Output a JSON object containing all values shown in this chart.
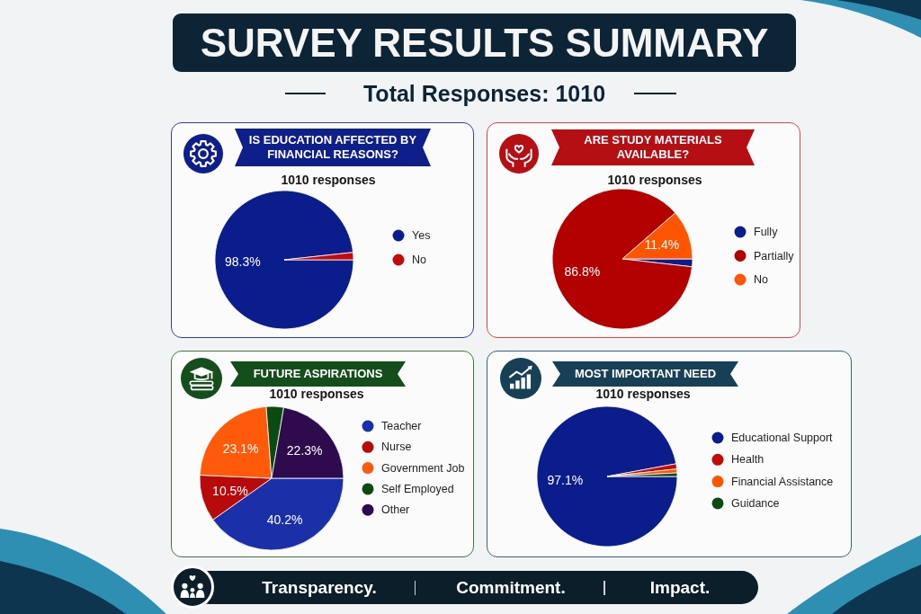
{
  "chart_data": [
    {
      "type": "other",
      "title": "SURVEY RESULTS SUMMARY",
      "subtitle": "Total Responses: 1010"
    },
    {
      "type": "pie",
      "title": "IS EDUCATION AFFECTED BY FINANCIAL REASONS?",
      "subtitle": "1010 responses",
      "categories": [
        "Yes",
        "No"
      ],
      "values": [
        98.3,
        1.7
      ],
      "colors": [
        "#0b1c8c",
        "#c40a0a"
      ],
      "value_labels": [
        "98.3%",
        null
      ],
      "legend": "right"
    },
    {
      "type": "pie",
      "title": "ARE STUDY MATERIALS AVAILABLE?",
      "subtitle": "1010 responses",
      "categories": [
        "Fully",
        "Partially",
        "No"
      ],
      "values": [
        1.8,
        86.8,
        11.4
      ],
      "colors": [
        "#0b1c8c",
        "#b30000",
        "#ff5500"
      ],
      "value_labels": [
        null,
        "86.8%",
        "11.4%"
      ],
      "legend": "right"
    },
    {
      "type": "pie",
      "title": "FUTURE ASPIRATIONS",
      "subtitle": "1010 responses",
      "categories": [
        "Teacher",
        "Nurse",
        "Government Job",
        "Self Employed",
        "Other"
      ],
      "values": [
        40.2,
        10.5,
        23.1,
        3.9,
        22.3
      ],
      "colors": [
        "#1a2fa8",
        "#b80a0a",
        "#ff5a0a",
        "#0b4a12",
        "#2d0b4d"
      ],
      "value_labels": [
        "40.2%",
        "10.5%",
        "23.1%",
        null,
        "22.3%"
      ],
      "legend": "right"
    },
    {
      "type": "pie",
      "title": "MOST IMPORTANT NEED",
      "subtitle": "1010 responses",
      "categories": [
        "Educational Support",
        "Health",
        "Financial Assistance",
        "Guidance"
      ],
      "values": [
        97.1,
        1.2,
        0.9,
        0.8
      ],
      "colors": [
        "#0b1c8c",
        "#c40a0a",
        "#ff5500",
        "#0b4a12"
      ],
      "value_labels": [
        "97.1%",
        null,
        null,
        null
      ],
      "legend": "right"
    },
    {
      "type": "other",
      "annotations": [
        "Transparency.",
        "Commitment.",
        "Impact."
      ]
    }
  ]
}
